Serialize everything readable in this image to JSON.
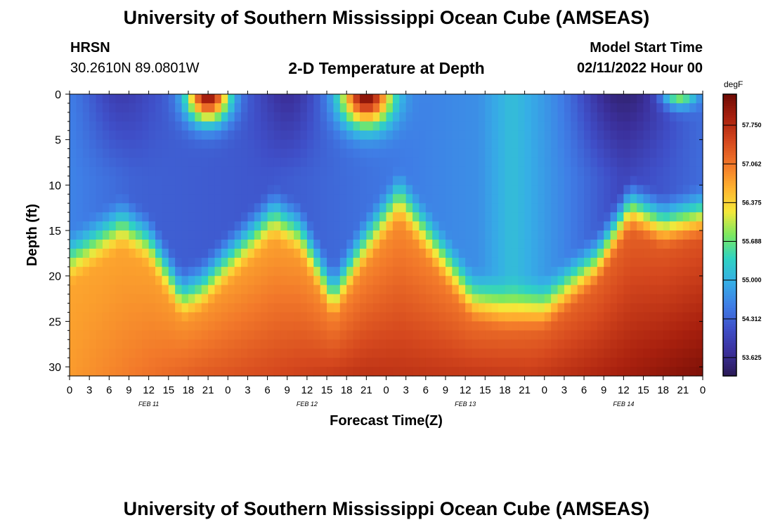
{
  "page": {
    "title": "University of Southern Mississippi Ocean Cube (AMSEAS)",
    "bottom_title": "University of Southern Mississippi Ocean Cube (AMSEAS)",
    "station": "HRSN",
    "coordinates": "30.2610N  89.0801W",
    "model_start_label": "Model Start Time",
    "model_start_value": "02/11/2022 Hour 00"
  },
  "chart_data": {
    "type": "heatmap",
    "title": "2-D Temperature at Depth",
    "xlabel": "Forecast Time(Z)",
    "ylabel": "Depth (ft)",
    "colorbar_units": "degF",
    "colorbar_ticks": [
      "57.750",
      "57.062",
      "56.375",
      "55.688",
      "55.000",
      "54.312",
      "53.625"
    ],
    "color_range": [
      53.3,
      58.3
    ],
    "x_hours_range": [
      0,
      96
    ],
    "y_range": [
      0,
      31
    ],
    "y_ticks": [
      "0",
      "5",
      "10",
      "15",
      "20",
      "25",
      "30"
    ],
    "x_ticks": [
      "0",
      "3",
      "6",
      "9",
      "12",
      "15",
      "18",
      "21",
      "0",
      "3",
      "6",
      "9",
      "12",
      "15",
      "18",
      "21",
      "0",
      "3",
      "6",
      "9",
      "12",
      "15",
      "18",
      "21",
      "0",
      "3",
      "6",
      "9",
      "12",
      "15",
      "18",
      "21",
      "0"
    ],
    "date_labels": [
      {
        "label": "FEB 11",
        "hour": 12
      },
      {
        "label": "FEB 12",
        "hour": 36
      },
      {
        "label": "FEB 13",
        "hour": 60
      },
      {
        "label": "FEB 14",
        "hour": 84
      }
    ],
    "colormap": [
      "#2a1a55",
      "#3b2f9a",
      "#3f4fc8",
      "#3f7ee6",
      "#36aee6",
      "#2fd3c2",
      "#7ce860",
      "#f5e83a",
      "#ffb22f",
      "#f2782a",
      "#d5481e",
      "#a8200e",
      "#6e0b05"
    ],
    "interface_depth_ft": [
      {
        "hour": 0,
        "depth": 18
      },
      {
        "hour": 8,
        "depth": 14
      },
      {
        "hour": 12,
        "depth": 16
      },
      {
        "hour": 17,
        "depth": 22
      },
      {
        "hour": 20,
        "depth": 21
      },
      {
        "hour": 24,
        "depth": 18
      },
      {
        "hour": 31,
        "depth": 13
      },
      {
        "hour": 35,
        "depth": 15
      },
      {
        "hour": 40,
        "depth": 22
      },
      {
        "hour": 44,
        "depth": 17
      },
      {
        "hour": 50,
        "depth": 11
      },
      {
        "hour": 54,
        "depth": 15
      },
      {
        "hour": 61,
        "depth": 22
      },
      {
        "hour": 66,
        "depth": 23
      },
      {
        "hour": 72,
        "depth": 23
      },
      {
        "hour": 80,
        "depth": 18
      },
      {
        "hour": 85,
        "depth": 12
      },
      {
        "hour": 90,
        "depth": 14
      },
      {
        "hour": 96,
        "depth": 13
      }
    ],
    "surface_warm_pulses": [
      {
        "hour": 21,
        "width_h": 3.2,
        "depth_ft": 3.5,
        "temp": 58.1
      },
      {
        "hour": 45,
        "width_h": 3.8,
        "depth_ft": 4.0,
        "temp": 58.2
      },
      {
        "hour": 92.5,
        "width_h": 2.6,
        "depth_ft": 1.8,
        "temp": 55.9
      }
    ],
    "surface_cold_centers": [
      {
        "hour": 8,
        "width_h": 5,
        "temp": 53.9
      },
      {
        "hour": 33,
        "width_h": 4,
        "temp": 53.7
      },
      {
        "hour": 84,
        "width_h": 6,
        "temp": 53.5
      }
    ],
    "upper_layer_base_temp": [
      {
        "hour": 0,
        "temp": 54.6
      },
      {
        "hour": 10,
        "temp": 54.3
      },
      {
        "hour": 30,
        "temp": 54.2
      },
      {
        "hour": 55,
        "temp": 54.6
      },
      {
        "hour": 62,
        "temp": 54.7
      },
      {
        "hour": 67,
        "temp": 55.15
      },
      {
        "hour": 72,
        "temp": 54.8
      },
      {
        "hour": 84,
        "temp": 54.0
      },
      {
        "hour": 96,
        "temp": 54.4
      }
    ],
    "lower_layer_temp": {
      "top": [
        {
          "hour": 0,
          "temp": 56.7
        },
        {
          "hour": 30,
          "temp": 56.6
        },
        {
          "hour": 55,
          "temp": 56.8
        },
        {
          "hour": 84,
          "temp": 57.1
        },
        {
          "hour": 96,
          "temp": 57.2
        }
      ],
      "bottom": [
        {
          "hour": 0,
          "temp": 56.8
        },
        {
          "hour": 20,
          "temp": 57.3
        },
        {
          "hour": 45,
          "temp": 57.7
        },
        {
          "hour": 70,
          "temp": 57.6
        },
        {
          "hour": 96,
          "temp": 58.2
        }
      ]
    }
  }
}
